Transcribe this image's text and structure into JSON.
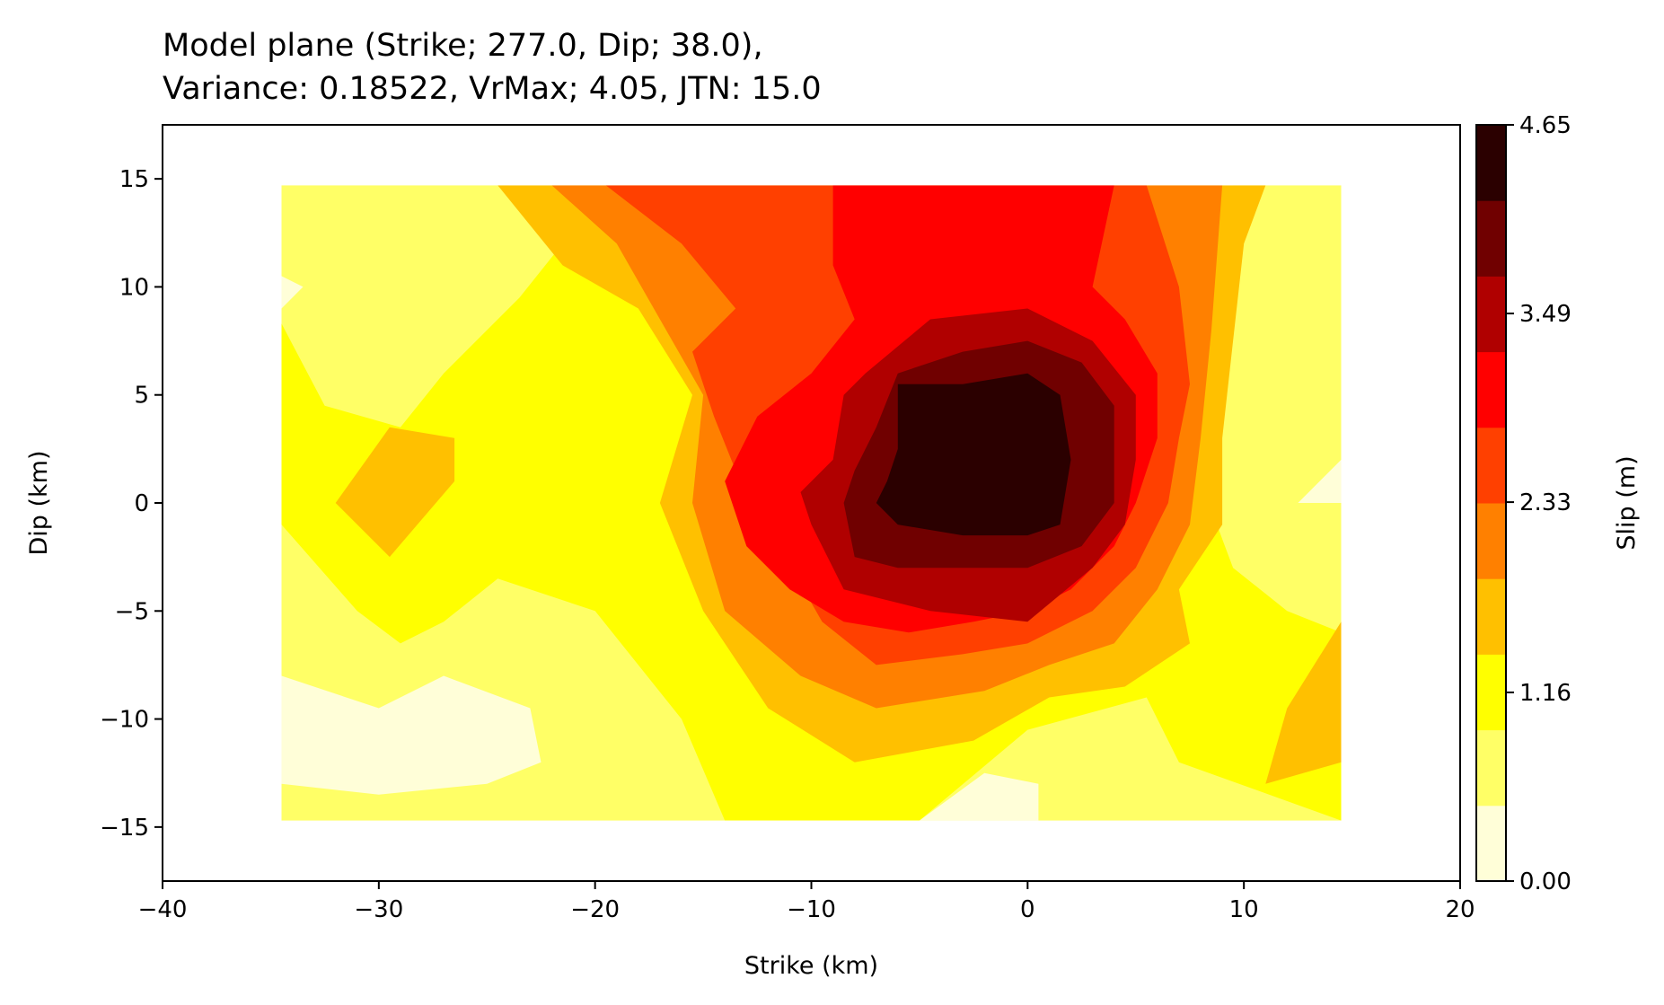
{
  "chart_data": {
    "type": "heatmap",
    "title_line1": "Model plane (Strike; 277.0, Dip; 38.0),",
    "title_line2": "Variance: 0.18522, VrMax; 4.05, JTN: 15.0",
    "xlabel": "Strike (km)",
    "ylabel": "Dip (km)",
    "xlim": [
      -40,
      20
    ],
    "ylim": [
      -17.5,
      17.5
    ],
    "xticks": [
      -40,
      -30,
      -20,
      -10,
      0,
      10,
      20
    ],
    "xtick_labels": [
      "−40",
      "−30",
      "−20",
      "−10",
      "0",
      "10",
      "20"
    ],
    "yticks": [
      -15,
      -10,
      -5,
      0,
      5,
      10,
      15
    ],
    "ytick_labels": [
      "−15",
      "−10",
      "−5",
      "0",
      "5",
      "10",
      "15"
    ],
    "fault_extent": {
      "strike": [
        -34.5,
        14.5
      ],
      "dip": [
        -14.7,
        14.7
      ]
    },
    "peak": {
      "strike": -3,
      "dip": 2,
      "slip": 4.65
    },
    "colorbar": {
      "label": "Slip (m)",
      "range": [
        0,
        4.65
      ],
      "ticks": [
        0.0,
        1.16,
        2.33,
        3.49,
        4.65
      ],
      "tick_labels": [
        "0.00",
        "1.16",
        "2.33",
        "3.49",
        "4.65"
      ],
      "levels": [
        0,
        0.58,
        1.16,
        1.74,
        2.33,
        2.91,
        3.49,
        4.07,
        4.65
      ],
      "colors": [
        "#fffed8",
        "#ffff66",
        "#ffff00",
        "#ffc000",
        "#ff8000",
        "#ff4000",
        "#ff0000",
        "#b00000",
        "#700000",
        "#2b0000"
      ]
    },
    "contour_regions": [
      {
        "level": 1,
        "color": "#ffff66",
        "polygons": [
          [
            [
              -34.5,
              -1
            ],
            [
              -31,
              -5
            ],
            [
              -29,
              -6.5
            ],
            [
              -27,
              -5.5
            ],
            [
              -24.5,
              -3.5
            ],
            [
              -20,
              -5
            ],
            [
              -16,
              -10
            ],
            [
              -14,
              -14.7
            ],
            [
              -34.5,
              -14.7
            ]
          ],
          [
            [
              -34.5,
              8.3
            ],
            [
              -32.5,
              4.5
            ],
            [
              -29,
              3.5
            ],
            [
              -27,
              6
            ],
            [
              -23.5,
              9.5
            ],
            [
              -21.5,
              12
            ],
            [
              -24,
              14.7
            ],
            [
              -34.5,
              14.7
            ]
          ],
          [
            [
              9.5,
              14.7
            ],
            [
              8,
              10.5
            ],
            [
              6.5,
              5.5
            ],
            [
              8,
              1
            ],
            [
              9.5,
              -3
            ],
            [
              12,
              -5
            ],
            [
              14.5,
              -6
            ],
            [
              14.5,
              14.7
            ]
          ],
          [
            [
              0,
              -10.5
            ],
            [
              5.5,
              -9
            ],
            [
              7,
              -12
            ],
            [
              14.5,
              -14.7
            ],
            [
              -5,
              -14.7
            ]
          ]
        ]
      },
      {
        "level": 0,
        "color": "#fffed8",
        "polygons": [
          [
            [
              -34.5,
              -8
            ],
            [
              -30,
              -9.5
            ],
            [
              -27,
              -8
            ],
            [
              -23,
              -9.5
            ],
            [
              -22.5,
              -12
            ],
            [
              -25,
              -13
            ],
            [
              -30,
              -13.5
            ],
            [
              -34.5,
              -13
            ]
          ],
          [
            [
              -34.5,
              9
            ],
            [
              -33.5,
              10
            ],
            [
              -34.5,
              10.5
            ]
          ],
          [
            [
              14.5,
              0
            ],
            [
              12.5,
              0
            ],
            [
              14.5,
              2
            ]
          ],
          [
            [
              -5,
              -14.7
            ],
            [
              -2,
              -12.5
            ],
            [
              0.5,
              -13
            ],
            [
              0.5,
              -14.7
            ]
          ]
        ]
      },
      {
        "level": 3,
        "color": "#ffc000",
        "polygons": [
          [
            [
              -32,
              0
            ],
            [
              -29.5,
              3.5
            ],
            [
              -26.5,
              3
            ],
            [
              -26.5,
              1
            ],
            [
              -29.5,
              -2.5
            ]
          ],
          [
            [
              -24.5,
              14.7
            ],
            [
              -21.5,
              11
            ],
            [
              -18,
              9
            ],
            [
              -15.5,
              5
            ],
            [
              -17,
              0
            ],
            [
              -15,
              -5
            ],
            [
              -12,
              -9.5
            ],
            [
              -8,
              -12
            ],
            [
              -2.5,
              -11
            ],
            [
              1,
              -9
            ],
            [
              4.5,
              -8.5
            ],
            [
              7.5,
              -6.5
            ],
            [
              7,
              -4
            ],
            [
              9,
              -1
            ],
            [
              9,
              3
            ],
            [
              9.5,
              7.5
            ],
            [
              10,
              12
            ],
            [
              11,
              14.7
            ]
          ],
          [
            [
              14.5,
              -5.5
            ],
            [
              12,
              -9.5
            ],
            [
              11,
              -13
            ],
            [
              14.5,
              -12
            ]
          ]
        ]
      },
      {
        "level": 4,
        "color": "#ff8000",
        "polygons": [
          [
            [
              -22,
              14.7
            ],
            [
              -19,
              12
            ],
            [
              -17,
              8.5
            ],
            [
              -15,
              5
            ],
            [
              -15.5,
              0
            ],
            [
              -14,
              -5
            ],
            [
              -10.5,
              -8
            ],
            [
              -7,
              -9.5
            ],
            [
              -2,
              -8.7
            ],
            [
              1,
              -7.5
            ],
            [
              4,
              -6.5
            ],
            [
              6,
              -4
            ],
            [
              7.5,
              -1
            ],
            [
              8,
              3
            ],
            [
              8.5,
              8
            ],
            [
              9,
              14.7
            ]
          ]
        ]
      },
      {
        "level": 5,
        "color": "#ff4000",
        "polygons": [
          [
            [
              -19.5,
              14.7
            ],
            [
              -16,
              12
            ],
            [
              -13.5,
              9
            ],
            [
              -15.5,
              7
            ],
            [
              -14.5,
              4
            ],
            [
              -13.5,
              1.5
            ],
            [
              -11.5,
              -2
            ],
            [
              -9.5,
              -5.5
            ],
            [
              -7,
              -7.5
            ],
            [
              -3,
              -7
            ],
            [
              0,
              -6.5
            ],
            [
              3,
              -5
            ],
            [
              5,
              -3
            ],
            [
              6.5,
              0
            ],
            [
              7,
              3
            ],
            [
              7.5,
              5.5
            ],
            [
              7,
              10
            ],
            [
              5.5,
              14.7
            ]
          ]
        ]
      },
      {
        "level": 6,
        "color": "#ff0000",
        "polygons": [
          [
            [
              -9,
              14.7
            ],
            [
              -9,
              11
            ],
            [
              -8,
              8.5
            ],
            [
              -10,
              6
            ],
            [
              -12.5,
              4
            ],
            [
              -14,
              1
            ],
            [
              -13,
              -2
            ],
            [
              -11,
              -4
            ],
            [
              -8.5,
              -5.5
            ],
            [
              -5.5,
              -6
            ],
            [
              -2.5,
              -5.5
            ],
            [
              0,
              -5
            ],
            [
              2,
              -4
            ],
            [
              4,
              -2
            ],
            [
              5,
              0
            ],
            [
              6,
              3
            ],
            [
              6,
              6
            ],
            [
              4.5,
              8.5
            ],
            [
              3,
              10
            ],
            [
              4,
              14.7
            ]
          ]
        ]
      },
      {
        "level": 7,
        "color": "#b00000",
        "polygons": [
          [
            [
              -7.5,
              6
            ],
            [
              -4.5,
              8.5
            ],
            [
              0,
              9
            ],
            [
              3,
              7.5
            ],
            [
              5,
              5
            ],
            [
              5,
              2
            ],
            [
              4.5,
              -1
            ],
            [
              3,
              -3
            ],
            [
              0,
              -5.5
            ],
            [
              -4.5,
              -5
            ],
            [
              -8.5,
              -4
            ],
            [
              -10,
              -1
            ],
            [
              -10.5,
              0.5
            ],
            [
              -9,
              2
            ],
            [
              -8.5,
              5
            ]
          ]
        ]
      },
      {
        "level": 8,
        "color": "#700000",
        "polygons": [
          [
            [
              -6,
              6
            ],
            [
              -3,
              7
            ],
            [
              0,
              7.5
            ],
            [
              2.5,
              6.5
            ],
            [
              4,
              4.5
            ],
            [
              4,
              0
            ],
            [
              2.5,
              -2
            ],
            [
              0,
              -3
            ],
            [
              -3,
              -3
            ],
            [
              -6,
              -3
            ],
            [
              -8,
              -2.5
            ],
            [
              -8.5,
              0
            ],
            [
              -8,
              1.5
            ],
            [
              -7,
              3.5
            ]
          ]
        ]
      },
      {
        "level": 9,
        "color": "#2b0000",
        "polygons": [
          [
            [
              -6,
              5.5
            ],
            [
              -3,
              5.5
            ],
            [
              0,
              6
            ],
            [
              1.5,
              5
            ],
            [
              2,
              2
            ],
            [
              1.5,
              -1
            ],
            [
              0,
              -1.5
            ],
            [
              -3,
              -1.5
            ],
            [
              -6,
              -1
            ],
            [
              -7,
              0
            ],
            [
              -6.5,
              1
            ],
            [
              -6,
              2.5
            ]
          ]
        ]
      }
    ]
  }
}
